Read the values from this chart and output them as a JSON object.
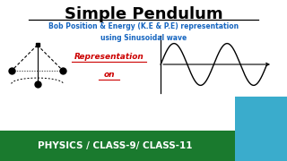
{
  "title": "Simple Pendulum",
  "subtitle1": "Bob Position & Energy (K.E & P.E) representation",
  "subtitle2": "using Sinusoidal wave",
  "rep_text1": "Representation",
  "rep_text2": "on",
  "footer_text": "PHYSICS / CLASS-9/ CLASS-11",
  "bg_color": "#ffffff",
  "footer_bg": "#1a7a2e",
  "footer_text_color": "#ffffff",
  "title_color": "#000000",
  "subtitle_color": "#1565c0",
  "rep_color": "#cc0000",
  "title_fontsize": 13,
  "subtitle_fontsize": 5.5,
  "rep_fontsize": 6.5,
  "footer_fontsize": 7.5
}
